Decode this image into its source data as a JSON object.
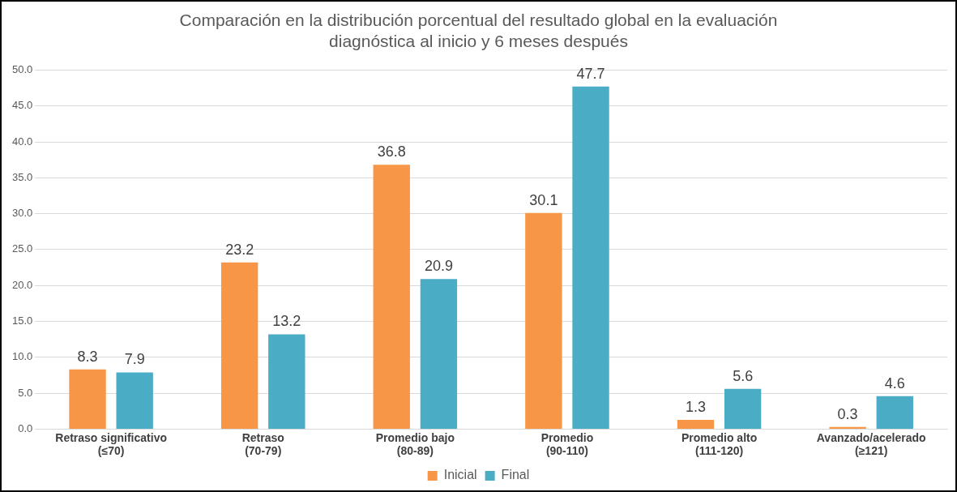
{
  "chart_data": {
    "type": "bar",
    "title": "Comparación en la distribución porcentual del resultado global en la evaluación\ndiagnóstica al inicio y 6 meses después",
    "categories": [
      "Retraso significativo\n(≤70)",
      "Retraso\n(70-79)",
      "Promedio bajo\n(80-89)",
      "Promedio\n(90-110)",
      "Promedio alto\n(111-120)",
      "Avanzado/acelerado\n(≥121)"
    ],
    "series": [
      {
        "name": "Inicial",
        "color": "#f79646",
        "values": [
          8.3,
          23.2,
          36.8,
          30.1,
          1.3,
          0.3
        ]
      },
      {
        "name": "Final",
        "color": "#4bacc6",
        "values": [
          7.9,
          13.2,
          20.9,
          47.7,
          5.6,
          4.6
        ]
      }
    ],
    "ylim": [
      0,
      50
    ],
    "yticks": [
      {
        "value": 0,
        "label": "0.0"
      },
      {
        "value": 5,
        "label": "5.0"
      },
      {
        "value": 10,
        "label": "10.0"
      },
      {
        "value": 15,
        "label": "15.0"
      },
      {
        "value": 20,
        "label": "20.0"
      },
      {
        "value": 25,
        "label": "25.0"
      },
      {
        "value": 30,
        "label": "30.0"
      },
      {
        "value": 35,
        "label": "35.0"
      },
      {
        "value": 40,
        "label": "40.0"
      },
      {
        "value": 45,
        "label": "45.0"
      },
      {
        "value": 50,
        "label": "50.0"
      }
    ],
    "grid": "y",
    "legend": "bottom",
    "data_labels": true
  }
}
